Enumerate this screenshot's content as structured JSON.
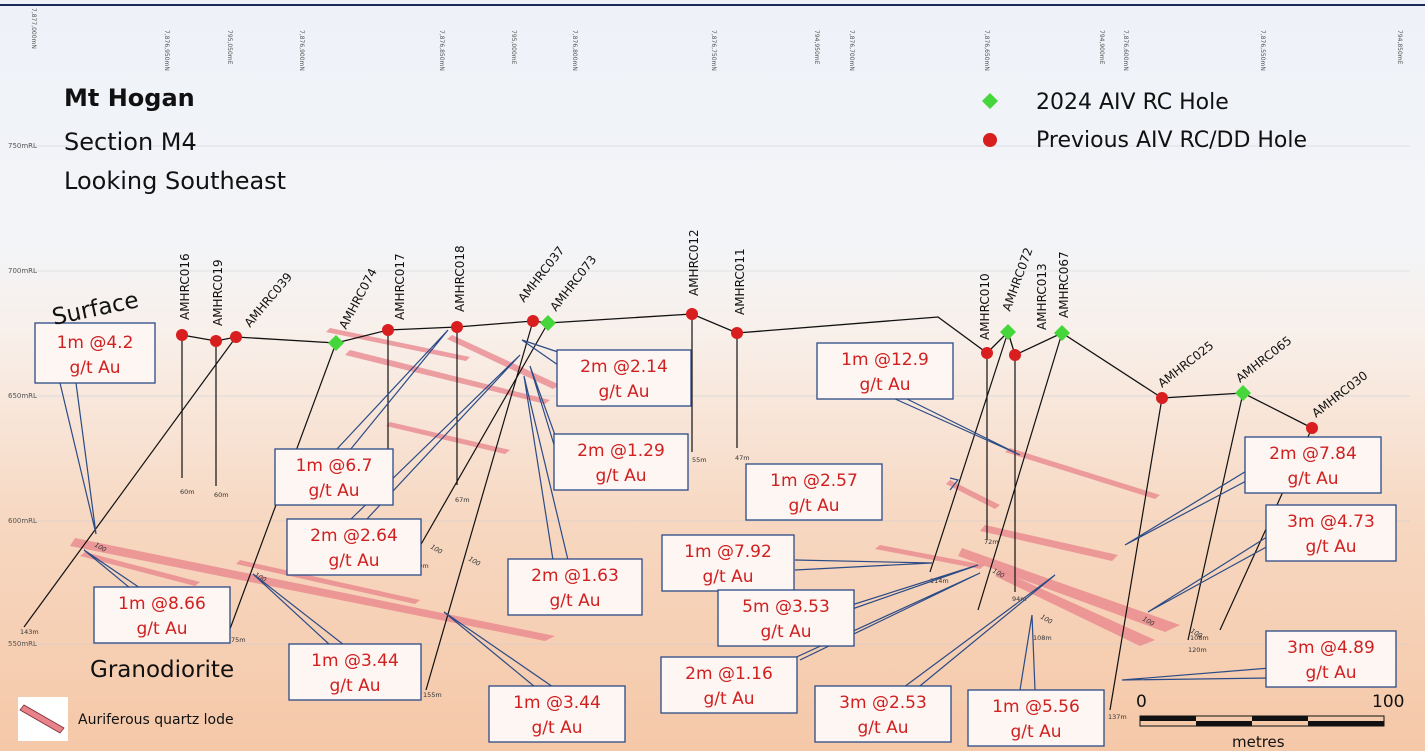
{
  "header": {
    "title": "Mt Hogan",
    "section": "Section M4",
    "view": "Looking Southeast"
  },
  "legend": {
    "new_hole": "2024 AIV RC Hole",
    "prev_hole": "Previous AIV RC/DD Hole",
    "lode": "Auriferous quartz lode",
    "new_color": "#44d63a",
    "prev_color": "#d81e1e"
  },
  "labels": {
    "surface": "Surface",
    "rock": "Granodiorite"
  },
  "scale": {
    "start": "0",
    "end": "100",
    "unit": "metres"
  },
  "rl_labels": [
    "750mRL",
    "700mRL",
    "650mRL",
    "600mRL",
    "550mRL"
  ],
  "grid_labels": [
    "7,877,000mN",
    "7,876,950mN",
    "795,050mE",
    "7,876,900mN",
    "7,876,850mN",
    "795,000mE",
    "7,876,800mN",
    "7,876,750mN",
    "794,950mE",
    "7,876,700mN",
    "7,876,650mN",
    "794,900mE",
    "7,876,600mN",
    "7,876,550mN",
    "794,850mE"
  ],
  "holes": [
    {
      "id": "AMHRC016",
      "type": "prev",
      "depth": "60m"
    },
    {
      "id": "AMHRC019",
      "type": "prev",
      "depth": "60m"
    },
    {
      "id": "AMHRC039",
      "type": "prev",
      "depth": "143m"
    },
    {
      "id": "AMHRC074",
      "type": "new",
      "depth": "75m"
    },
    {
      "id": "AMHRC017",
      "type": "prev",
      "depth": "100m"
    },
    {
      "id": "AMHRC018",
      "type": "prev",
      "depth": "67m"
    },
    {
      "id": "AMHRC037",
      "type": "prev",
      "depth": "155m"
    },
    {
      "id": "AMHRC073",
      "type": "new",
      "depth": ""
    },
    {
      "id": "AMHRC012",
      "type": "prev",
      "depth": "55m"
    },
    {
      "id": "AMHRC011",
      "type": "prev",
      "depth": "47m"
    },
    {
      "id": "AMHRC010",
      "type": "prev",
      "depth": "72m"
    },
    {
      "id": "AMHRC072",
      "type": "new",
      "depth": "114m"
    },
    {
      "id": "AMHRC013",
      "type": "prev",
      "depth": "94m"
    },
    {
      "id": "AMHRC067",
      "type": "new",
      "depth": "108m"
    },
    {
      "id": "AMHRC025",
      "type": "prev",
      "depth": "137m"
    },
    {
      "id": "AMHRC065",
      "type": "new",
      "depth": "120m"
    },
    {
      "id": "AMHRC030",
      "type": "prev",
      "depth": "108m"
    }
  ],
  "tick_100": "100",
  "intercepts": [
    {
      "l1": "1m @4.2",
      "l2": "g/t Au"
    },
    {
      "l1": "1m @8.66",
      "l2": "g/t Au"
    },
    {
      "l1": "1m @6.7",
      "l2": "g/t Au"
    },
    {
      "l1": "2m @2.64",
      "l2": "g/t Au"
    },
    {
      "l1": "1m @3.44",
      "l2": "g/t Au"
    },
    {
      "l1": "2m @2.14",
      "l2": "g/t Au"
    },
    {
      "l1": "2m @1.29",
      "l2": "g/t Au"
    },
    {
      "l1": "2m @1.63",
      "l2": "g/t Au"
    },
    {
      "l1": "1m @3.44",
      "l2": "g/t Au"
    },
    {
      "l1": "1m @12.9",
      "l2": "g/t Au"
    },
    {
      "l1": "1m @2.57",
      "l2": "g/t Au"
    },
    {
      "l1": "1m @7.92",
      "l2": "g/t Au"
    },
    {
      "l1": "5m @3.53",
      "l2": "g/t Au"
    },
    {
      "l1": "2m @1.16",
      "l2": "g/t Au"
    },
    {
      "l1": "3m @2.53",
      "l2": "g/t Au"
    },
    {
      "l1": "1m @5.56",
      "l2": "g/t Au"
    },
    {
      "l1": "2m @7.84",
      "l2": "g/t Au"
    },
    {
      "l1": "3m @4.73",
      "l2": "g/t Au"
    },
    {
      "l1": "3m @4.89",
      "l2": "g/t Au"
    }
  ]
}
